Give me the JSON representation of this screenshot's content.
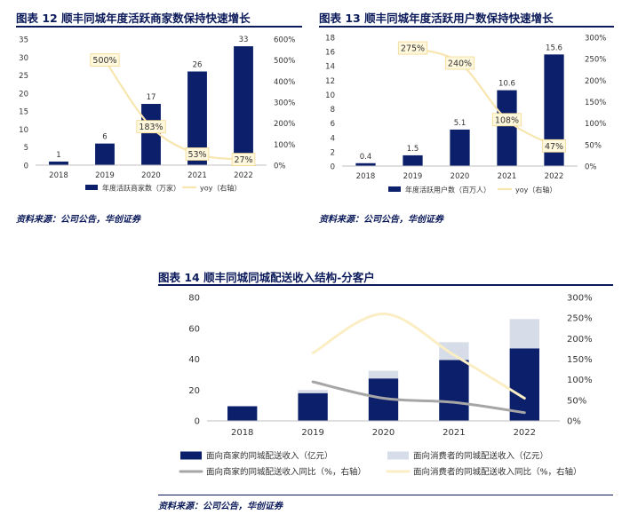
{
  "chart_data": [
    {
      "type": "bar",
      "title": "图表 12 顺丰同城年度活跃商家数保持快速增长",
      "categories": [
        "2018",
        "2019",
        "2020",
        "2021",
        "2022"
      ],
      "series": [
        {
          "name": "年度活跃商家数（万家）",
          "values": [
            1,
            6,
            17,
            26,
            33
          ],
          "color": "#0b1f6b",
          "axis": "left"
        },
        {
          "name": "yoy（右轴）",
          "type": "line",
          "values": [
            null,
            500,
            183,
            53,
            27
          ],
          "labels": [
            "",
            "500%",
            "183%",
            "53%",
            "27%"
          ],
          "color": "#f8e6b0",
          "axis": "right"
        }
      ],
      "data_labels": [
        "1",
        "6",
        "17",
        "26",
        "33"
      ],
      "ylim": [
        0,
        35
      ],
      "yticks": [
        "0",
        "5",
        "10",
        "15",
        "20",
        "25",
        "30",
        "35"
      ],
      "y2lim": [
        0,
        600
      ],
      "y2ticks": [
        "0%",
        "100%",
        "200%",
        "300%",
        "400%",
        "500%",
        "600%"
      ],
      "legend_position": "bottom",
      "source": "资料来源：公司公告，华创证券"
    },
    {
      "type": "bar",
      "title": "图表 13 顺丰同城年度活跃用户数保持快速增长",
      "categories": [
        "2018",
        "2019",
        "2020",
        "2021",
        "2022"
      ],
      "series": [
        {
          "name": "年度活跃用户数（百万人）",
          "values": [
            0.4,
            1.5,
            5.1,
            10.6,
            15.6
          ],
          "color": "#0b1f6b",
          "axis": "left"
        },
        {
          "name": "yoy（右轴）",
          "type": "line",
          "values": [
            null,
            275,
            240,
            108,
            47
          ],
          "labels": [
            "",
            "275%",
            "240%",
            "108%",
            "47%"
          ],
          "color": "#f8e6b0",
          "axis": "right"
        }
      ],
      "data_labels": [
        "0.4",
        "1.5",
        "5.1",
        "10.6",
        "15.6"
      ],
      "ylim": [
        0,
        18
      ],
      "yticks": [
        "0",
        "2",
        "4",
        "6",
        "8",
        "10",
        "12",
        "14",
        "16",
        "18"
      ],
      "y2lim": [
        0,
        300
      ],
      "y2ticks": [
        "0%",
        "50%",
        "100%",
        "150%",
        "200%",
        "250%",
        "300%"
      ],
      "legend_position": "bottom",
      "source": "资料来源：公司公告，华创证券"
    },
    {
      "type": "bar",
      "title": "图表 14 顺丰同城同城配送收入结构-分客户",
      "stacked": true,
      "categories": [
        "2018",
        "2019",
        "2020",
        "2021",
        "2022"
      ],
      "series": [
        {
          "name": "面向商家的同城配送收入（亿元）",
          "values": [
            9.5,
            18,
            27.5,
            39.5,
            47
          ],
          "color": "#0b1f6b",
          "axis": "left"
        },
        {
          "name": "面向消费者的同城配送收入（亿元）",
          "values": [
            0,
            2,
            5,
            11.5,
            19
          ],
          "color": "#d6dce8",
          "axis": "left"
        },
        {
          "name": "面向商家的同城配送收入同比（%，右轴）",
          "type": "line",
          "values": [
            null,
            95,
            55,
            45,
            20
          ],
          "color": "#a6a6a6",
          "axis": "right"
        },
        {
          "name": "面向消费者的同城配送收入同比（%，右轴）",
          "type": "line",
          "values": [
            null,
            165,
            260,
            160,
            55
          ],
          "color": "#fbeec4",
          "axis": "right"
        }
      ],
      "ylim": [
        0,
        80
      ],
      "yticks": [
        "0",
        "20",
        "40",
        "60",
        "80"
      ],
      "y2lim": [
        0,
        300
      ],
      "y2ticks": [
        "0%",
        "50%",
        "100%",
        "150%",
        "200%",
        "250%",
        "300%"
      ],
      "legend_position": "bottom",
      "source": "资料来源：公司公告，华创证券"
    }
  ]
}
